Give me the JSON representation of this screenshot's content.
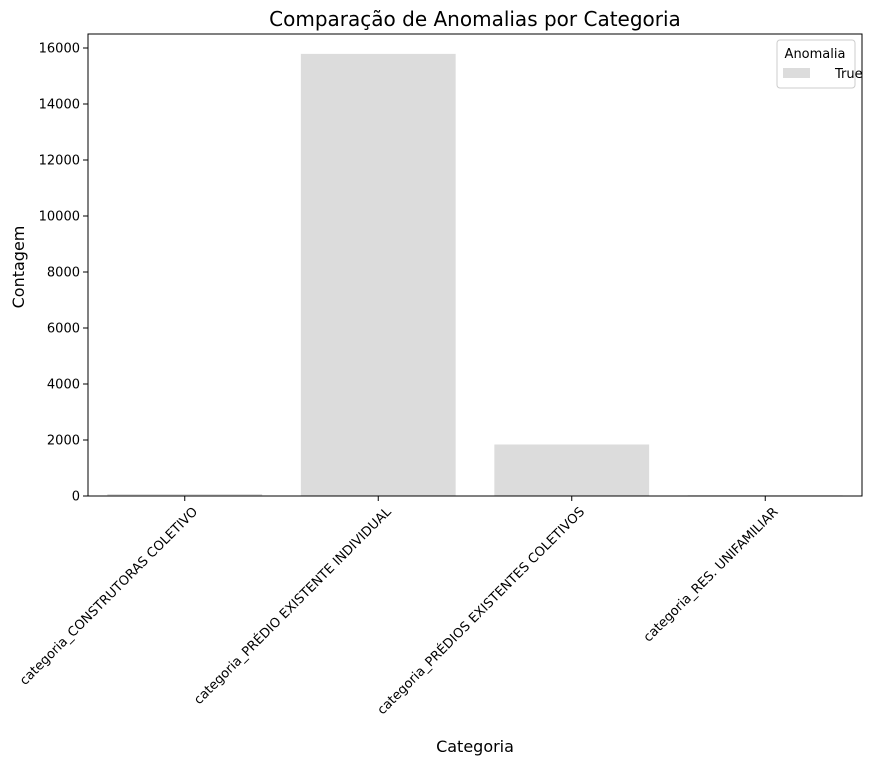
{
  "chart_data": {
    "type": "bar",
    "title": "Comparação de Anomalias por Categoria",
    "xlabel": "Categoria",
    "ylabel": "Contagem",
    "categories": [
      "categoria_CONSTRUTORAS COLETIVO",
      "categoria_PRÉDIO EXISTENTE INDIVIDUAL",
      "categoria_PRÉDIOS EXISTENTES COLETIVOS",
      "categoria_RES. UNIFAMILIAR"
    ],
    "series": [
      {
        "name": "True",
        "values": [
          70,
          15790,
          1840,
          25
        ],
        "color": "#dcdcdc"
      }
    ],
    "ylim": [
      0,
      16500
    ],
    "yticks": [
      0,
      2000,
      4000,
      6000,
      8000,
      10000,
      12000,
      14000,
      16000
    ],
    "grid": false,
    "legend": {
      "title": "Anomalia",
      "placement": "top-right"
    },
    "tick_rotation": 45
  }
}
